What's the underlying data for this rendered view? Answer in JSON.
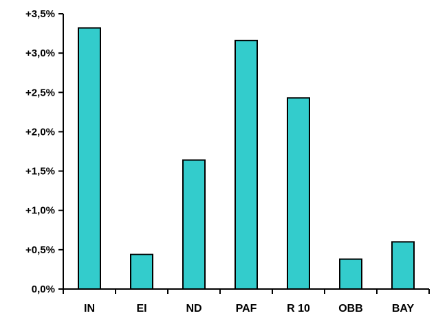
{
  "chart_data": {
    "type": "bar",
    "title": "",
    "xlabel": "",
    "ylabel": "",
    "categories": [
      "IN",
      "EI",
      "ND",
      "PAF",
      "R 10",
      "OBB",
      "BAY"
    ],
    "values": [
      3.32,
      0.44,
      1.64,
      3.16,
      2.43,
      0.38,
      0.6
    ],
    "ylim": [
      0,
      3.5
    ],
    "yticks": [
      0,
      0.5,
      1.0,
      1.5,
      2.0,
      2.5,
      3.0,
      3.5
    ],
    "ytick_labels": [
      "0,0%",
      "+0,5%",
      "+1,0%",
      "+1,5%",
      "+2,0%",
      "+2,5%",
      "+3,0%",
      "+3,5%"
    ],
    "grid": false,
    "legend": "none",
    "colors": {
      "bar_fill": "#33CCCC",
      "bar_stroke": "#000000",
      "axis": "#000000"
    }
  }
}
